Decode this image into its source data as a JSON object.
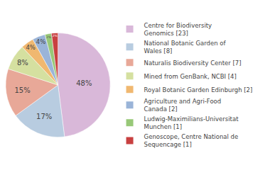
{
  "chart_data": {
    "type": "pie",
    "categories": [
      "Centre for Biodiversity\nGenomics [23]",
      "National Botanic Garden of\nWales [8]",
      "Naturalis Biodiversity Center [7]",
      "Mined from GenBank, NCBI [4]",
      "Royal Botanic Garden Edinburgh [2]",
      "Agriculture and Agri-Food\nCanada [2]",
      "Ludwig-Maximilians-Universitat\nMunchen [1]",
      "Genoscope, Centre National de\nSequencage [1]"
    ],
    "values": [
      48,
      17,
      15,
      8,
      4,
      4,
      2,
      2
    ],
    "value_labels": [
      "48%",
      "17%",
      "15%",
      "8%",
      "4%",
      "4%",
      "2%",
      "2%"
    ],
    "colors": [
      "#d9b8d9",
      "#b8cce0",
      "#e8a898",
      "#d5e0a0",
      "#f0b870",
      "#9ab4d8",
      "#98c878",
      "#c84040"
    ],
    "data_labels": true,
    "legend": "right"
  }
}
